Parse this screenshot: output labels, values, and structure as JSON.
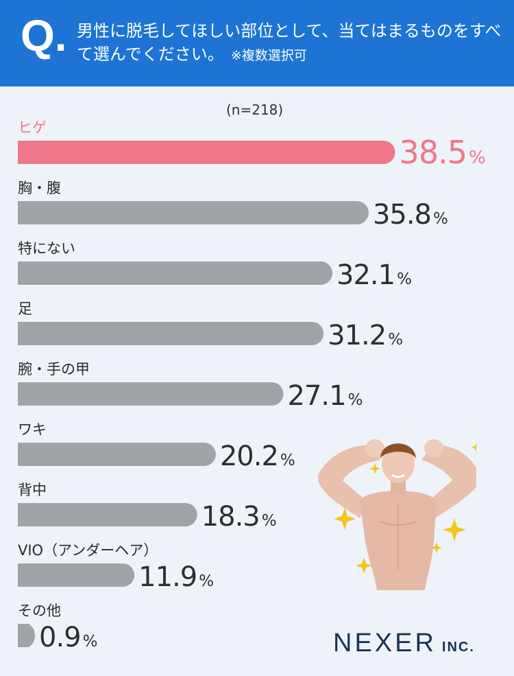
{
  "header": {
    "q_mark": "Q.",
    "question": "男性に脱毛してほしい部位として、当てはまるものをすべて選んでください。",
    "note": "※複数選択可"
  },
  "sample_size": "(n=218)",
  "logo": {
    "name": "NEXER",
    "suffix": "INC."
  },
  "colors": {
    "header": "#1d74d4",
    "highlight": "#f07789",
    "bar": "#a0a3a8",
    "value_text": "#2f2f2f"
  },
  "chart_data": {
    "type": "bar",
    "orientation": "horizontal",
    "categories": [
      "ヒゲ",
      "胸・腹",
      "特にない",
      "足",
      "腕・手の甲",
      "ワキ",
      "背中",
      "VIO（アンダーヘア）",
      "その他"
    ],
    "values": [
      38.5,
      35.8,
      32.1,
      31.2,
      27.1,
      20.2,
      18.3,
      11.9,
      0.9
    ],
    "value_labels": [
      "38.5",
      "35.8",
      "32.1",
      "31.2",
      "27.1",
      "20.2",
      "18.3",
      "11.9",
      "0.9"
    ],
    "unit": "%",
    "highlight_index": 0
  }
}
